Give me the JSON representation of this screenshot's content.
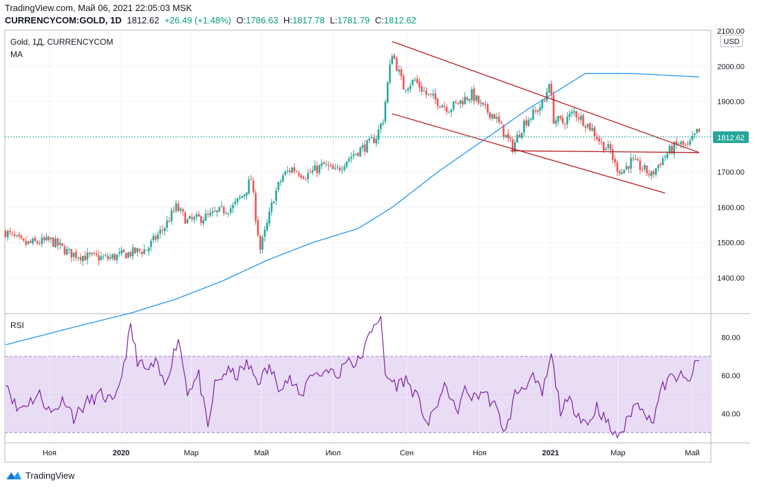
{
  "header": {
    "line1": "TradingView.com, Май 06, 2021 22:05:03 MSK",
    "symbol": "CURRENCYCOM:GOLD, 1D",
    "last": "1812.62",
    "change": "+26.49 (+1.48%)",
    "open_label": "O:",
    "open": "1786.63",
    "high_label": "H:",
    "high": "1817.78",
    "low_label": "L:",
    "low": "1781.79",
    "close_label": "C:",
    "close": "1812.62"
  },
  "legend": {
    "title": "Gold, 1Д, CURRENCYCOM",
    "ma": "MA",
    "rsi": "RSI"
  },
  "currency_badge": "USD",
  "footer": {
    "brand": "TradingView"
  },
  "colors": {
    "up": "#26a69a",
    "down": "#ef5350",
    "ma": "#2196f3",
    "rsi": "#7b1fa2",
    "rsi_band": "#e9dcf5",
    "trend": "#b71c1c",
    "last_badge": "#26a69a"
  },
  "chart_data": [
    {
      "type": "candlestick",
      "ylim": [
        1300,
        2100
      ],
      "y_ticks": [
        "1400.00",
        "1500.00",
        "1600.00",
        "1700.00",
        "1800.00",
        "1900.00",
        "2000.00",
        "2100.00"
      ],
      "x_ticks": [
        "Ноя",
        "2020",
        "Мар",
        "Май",
        "Июл",
        "Сен",
        "Ноя",
        "2021",
        "Мар",
        "Май"
      ],
      "last_price_label": "1812.62",
      "anchors": [
        [
          0,
          1530
        ],
        [
          8,
          1495
        ],
        [
          20,
          1505
        ],
        [
          28,
          1470
        ],
        [
          35,
          1460
        ],
        [
          45,
          1455
        ],
        [
          55,
          1470
        ],
        [
          62,
          1480
        ],
        [
          70,
          1545
        ],
        [
          75,
          1600
        ],
        [
          80,
          1560
        ],
        [
          90,
          1575
        ],
        [
          95,
          1590
        ],
        [
          100,
          1600
        ],
        [
          105,
          1640
        ],
        [
          108,
          1680
        ],
        [
          110,
          1575
        ],
        [
          112,
          1480
        ],
        [
          115,
          1550
        ],
        [
          118,
          1630
        ],
        [
          122,
          1690
        ],
        [
          126,
          1710
        ],
        [
          132,
          1690
        ],
        [
          140,
          1720
        ],
        [
          145,
          1700
        ],
        [
          150,
          1735
        ],
        [
          155,
          1760
        ],
        [
          160,
          1780
        ],
        [
          163,
          1800
        ],
        [
          166,
          1850
        ],
        [
          168,
          1950
        ],
        [
          170,
          2040
        ],
        [
          172,
          2000
        ],
        [
          175,
          1940
        ],
        [
          180,
          1960
        ],
        [
          185,
          1920
        ],
        [
          190,
          1900
        ],
        [
          195,
          1880
        ],
        [
          200,
          1900
        ],
        [
          205,
          1920
        ],
        [
          210,
          1880
        ],
        [
          215,
          1860
        ],
        [
          220,
          1800
        ],
        [
          223,
          1770
        ],
        [
          228,
          1840
        ],
        [
          233,
          1870
        ],
        [
          237,
          1900
        ],
        [
          239,
          1960
        ],
        [
          241,
          1850
        ],
        [
          245,
          1840
        ],
        [
          250,
          1870
        ],
        [
          255,
          1840
        ],
        [
          258,
          1820
        ],
        [
          262,
          1780
        ],
        [
          266,
          1760
        ],
        [
          268,
          1720
        ],
        [
          271,
          1700
        ],
        [
          275,
          1730
        ],
        [
          280,
          1710
        ],
        [
          284,
          1690
        ],
        [
          288,
          1730
        ],
        [
          292,
          1760
        ],
        [
          296,
          1780
        ],
        [
          300,
          1770
        ],
        [
          304,
          1812
        ]
      ],
      "moving_average": [
        [
          0,
          1350
        ],
        [
          30,
          1400
        ],
        [
          55,
          1440
        ],
        [
          75,
          1480
        ],
        [
          95,
          1530
        ],
        [
          115,
          1590
        ],
        [
          135,
          1640
        ],
        [
          155,
          1680
        ],
        [
          170,
          1740
        ],
        [
          190,
          1840
        ],
        [
          210,
          1930
        ],
        [
          230,
          2020
        ],
        [
          245,
          2080
        ],
        [
          255,
          2120
        ],
        [
          275,
          2120
        ],
        [
          305,
          2110
        ]
      ],
      "ma_note": "MA plotted on right-side scale offset",
      "trend_lines": [
        {
          "from": [
            170,
            2070
          ],
          "to": [
            305,
            1755
          ]
        },
        {
          "from": [
            170,
            1865
          ],
          "to": [
            290,
            1640
          ]
        },
        {
          "from": [
            222,
            1760
          ],
          "to": [
            305,
            1755
          ]
        }
      ]
    },
    {
      "type": "line",
      "name": "RSI",
      "ylim": [
        25,
        92
      ],
      "y_ticks": [
        "40.00",
        "60.00",
        "80.00"
      ],
      "band": [
        30,
        70
      ],
      "anchors": [
        [
          0,
          58
        ],
        [
          5,
          42
        ],
        [
          10,
          46
        ],
        [
          15,
          50
        ],
        [
          20,
          40
        ],
        [
          26,
          48
        ],
        [
          30,
          38
        ],
        [
          36,
          46
        ],
        [
          42,
          50
        ],
        [
          48,
          45
        ],
        [
          52,
          66
        ],
        [
          55,
          85
        ],
        [
          58,
          68
        ],
        [
          62,
          62
        ],
        [
          66,
          66
        ],
        [
          70,
          55
        ],
        [
          76,
          80
        ],
        [
          80,
          52
        ],
        [
          85,
          60
        ],
        [
          89,
          31
        ],
        [
          92,
          55
        ],
        [
          97,
          62
        ],
        [
          102,
          60
        ],
        [
          106,
          66
        ],
        [
          111,
          57
        ],
        [
          116,
          64
        ],
        [
          120,
          55
        ],
        [
          125,
          58
        ],
        [
          130,
          48
        ],
        [
          134,
          62
        ],
        [
          138,
          60
        ],
        [
          142,
          64
        ],
        [
          146,
          58
        ],
        [
          150,
          70
        ],
        [
          154,
          65
        ],
        [
          158,
          74
        ],
        [
          162,
          88
        ],
        [
          165,
          90
        ],
        [
          167,
          60
        ],
        [
          172,
          55
        ],
        [
          176,
          58
        ],
        [
          181,
          48
        ],
        [
          186,
          34
        ],
        [
          190,
          46
        ],
        [
          194,
          55
        ],
        [
          198,
          40
        ],
        [
          202,
          52
        ],
        [
          206,
          48
        ],
        [
          210,
          52
        ],
        [
          215,
          44
        ],
        [
          220,
          30
        ],
        [
          224,
          50
        ],
        [
          228,
          55
        ],
        [
          232,
          58
        ],
        [
          236,
          50
        ],
        [
          240,
          70
        ],
        [
          244,
          42
        ],
        [
          248,
          46
        ],
        [
          252,
          40
        ],
        [
          256,
          34
        ],
        [
          260,
          44
        ],
        [
          264,
          36
        ],
        [
          268,
          28
        ],
        [
          272,
          32
        ],
        [
          276,
          44
        ],
        [
          280,
          45
        ],
        [
          284,
          34
        ],
        [
          288,
          52
        ],
        [
          292,
          58
        ],
        [
          296,
          60
        ],
        [
          300,
          56
        ],
        [
          304,
          67
        ]
      ]
    }
  ]
}
